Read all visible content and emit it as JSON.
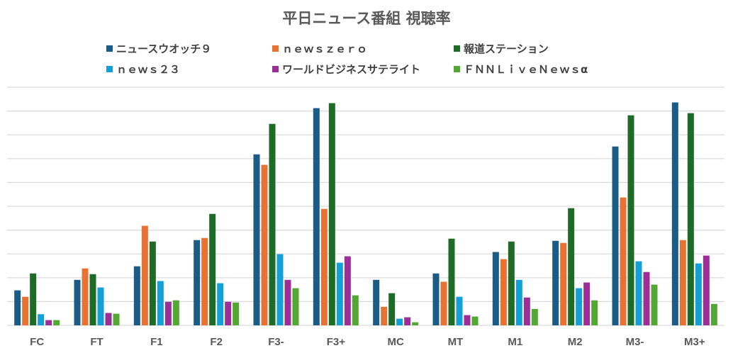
{
  "chart_data": {
    "type": "bar",
    "title": "平日ニュース番組 視聴率",
    "xlabel": "",
    "ylabel": "",
    "ylim": [
      0,
      10
    ],
    "grid": true,
    "y_tick_labels_shown": false,
    "legend_position": "top",
    "categories": [
      "FC",
      "FT",
      "F1",
      "F2",
      "F3-",
      "F3+",
      "MC",
      "MT",
      "M1",
      "M2",
      "M3-",
      "M3+"
    ],
    "series": [
      {
        "name": "ニュースウオッチ９",
        "color": "#1b5c85",
        "values": [
          1.47,
          1.91,
          2.48,
          3.58,
          7.18,
          9.12,
          1.91,
          2.18,
          3.08,
          3.55,
          7.51,
          9.36
        ]
      },
      {
        "name": "ｎｅｗｓｚｅｒｏ",
        "color": "#e67334",
        "values": [
          1.2,
          2.39,
          4.18,
          3.67,
          6.74,
          4.89,
          0.78,
          1.83,
          2.78,
          3.46,
          5.37,
          3.58
        ]
      },
      {
        "name": "報道ステーション",
        "color": "#1e6b28",
        "values": [
          2.18,
          2.15,
          3.52,
          4.68,
          8.46,
          9.33,
          1.35,
          3.64,
          3.52,
          4.92,
          8.82,
          8.91
        ]
      },
      {
        "name": "ｎｅｗｓ２３",
        "color": "#14a0d6",
        "values": [
          0.47,
          1.59,
          1.86,
          1.77,
          2.99,
          2.63,
          0.28,
          1.2,
          1.91,
          1.56,
          2.69,
          2.6
        ]
      },
      {
        "name": "ワールドビジネスサテライト",
        "color": "#9c2e97",
        "values": [
          0.22,
          0.52,
          0.99,
          0.99,
          1.91,
          2.9,
          0.34,
          0.43,
          1.17,
          1.8,
          2.24,
          2.93
        ]
      },
      {
        "name": "ＦＮＮＬｉｖｅＮｅｗｓα",
        "color": "#52a832",
        "values": [
          0.22,
          0.49,
          1.05,
          0.96,
          1.56,
          1.26,
          0.13,
          0.37,
          0.69,
          1.05,
          1.71,
          0.9
        ]
      }
    ]
  }
}
